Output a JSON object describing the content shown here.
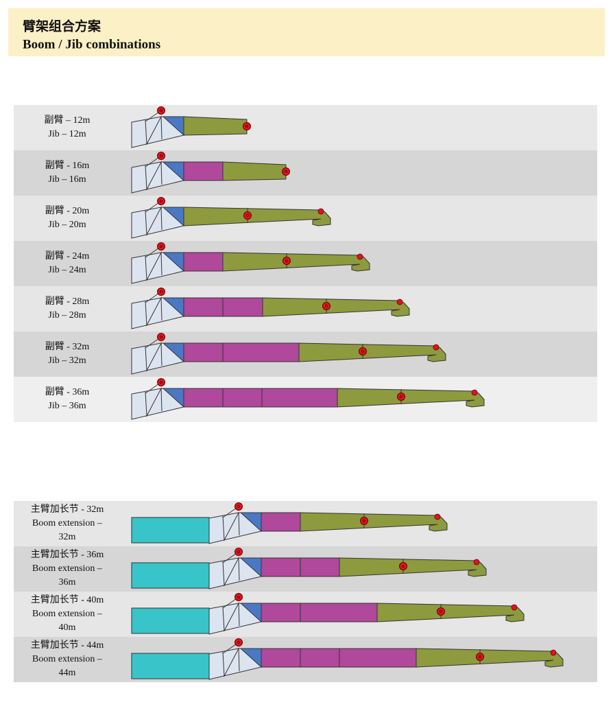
{
  "header": {
    "title": "臂架组合方案",
    "subtitle": "Boom / Jib combinations"
  },
  "jib_rows": [
    {
      "label": [
        "副臂 – 12m",
        "Jib – 12m"
      ]
    },
    {
      "label": [
        "副臂 - 16m",
        "Jib – 16m"
      ]
    },
    {
      "label": [
        "副臂 - 20m",
        "Jib – 20m"
      ]
    },
    {
      "label": [
        "副臂 - 24m",
        "Jib – 24m"
      ]
    },
    {
      "label": [
        "副臂 - 28m",
        "Jib – 28m"
      ]
    },
    {
      "label": [
        "副臂 - 32m",
        "Jib – 32m"
      ]
    },
    {
      "label": [
        "副臂 - 36m",
        "Jib – 36m"
      ]
    }
  ],
  "boom_rows": [
    {
      "label": [
        "主臂加长节 - 32m",
        "Boom extension –",
        "32m"
      ]
    },
    {
      "label": [
        "主臂加长节 - 36m",
        "Boom extension –",
        "36m"
      ]
    },
    {
      "label": [
        "主臂加长节 - 40m",
        "Boom extension –",
        "40m"
      ]
    },
    {
      "label": [
        "主臂加长节 - 44m",
        "Boom extension –",
        "44m"
      ]
    }
  ]
}
